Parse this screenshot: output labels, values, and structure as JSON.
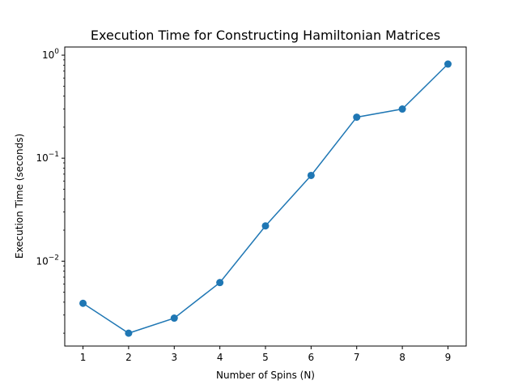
{
  "chart_data": {
    "type": "line",
    "title": "Execution Time for Constructing Hamiltonian Matrices",
    "xlabel": "Number of Spins (N)",
    "ylabel": "Execution Time (seconds)",
    "yscale": "log",
    "xlim": [
      0.6,
      9.4
    ],
    "ylim": [
      0.0015,
      1.2
    ],
    "grid": false,
    "x_ticks": [
      1,
      2,
      3,
      4,
      5,
      6,
      7,
      8,
      9
    ],
    "y_ticks": [
      {
        "value": 0.01,
        "base": "10",
        "exp": "−2"
      },
      {
        "value": 0.1,
        "base": "10",
        "exp": "−1"
      },
      {
        "value": 1,
        "base": "10",
        "exp": "0"
      }
    ],
    "series": [
      {
        "color": "#1f77b4",
        "marker": "circle",
        "x": [
          1,
          2,
          3,
          4,
          5,
          6,
          7,
          8,
          9
        ],
        "y": [
          0.0039,
          0.002,
          0.0028,
          0.0062,
          0.022,
          0.068,
          0.25,
          0.3,
          0.82
        ]
      }
    ]
  }
}
